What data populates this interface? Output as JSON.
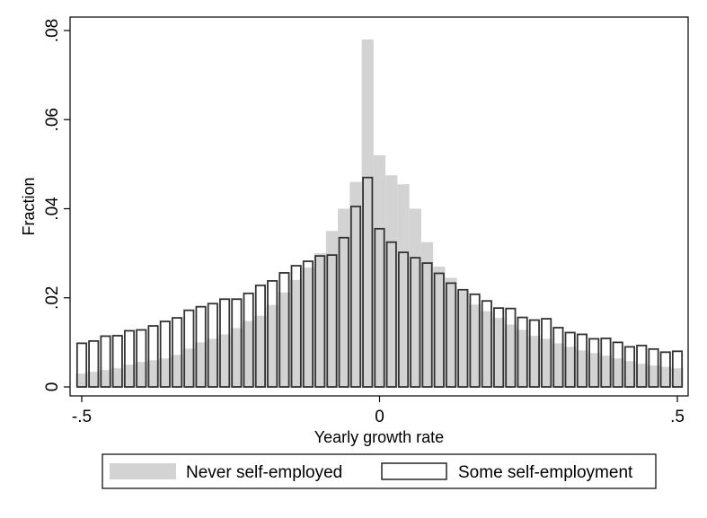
{
  "chart_data": {
    "type": "bar",
    "xlabel": "Yearly growth rate",
    "ylabel": "Fraction",
    "xlim": [
      -0.5,
      0.5
    ],
    "ylim": [
      0,
      0.08
    ],
    "x_ticks": [
      {
        "value": -0.5,
        "label": "-.5"
      },
      {
        "value": 0,
        "label": "0"
      },
      {
        "value": 0.5,
        "label": ".5"
      }
    ],
    "y_ticks": [
      {
        "value": 0,
        "label": "0"
      },
      {
        "value": 0.02,
        "label": ".02"
      },
      {
        "value": 0.04,
        "label": ".04"
      },
      {
        "value": 0.06,
        "label": ".06"
      },
      {
        "value": 0.08,
        "label": ".08"
      }
    ],
    "grid": false,
    "legend_position": "bottom",
    "bin_width": 0.02,
    "series": [
      {
        "name": "Never self-employed",
        "style": "filled",
        "color": "#d3d3d3",
        "x": [
          -0.5,
          -0.48,
          -0.46,
          -0.44,
          -0.42,
          -0.4,
          -0.38,
          -0.36,
          -0.34,
          -0.32,
          -0.3,
          -0.28,
          -0.26,
          -0.24,
          -0.22,
          -0.2,
          -0.18,
          -0.16,
          -0.14,
          -0.12,
          -0.1,
          -0.08,
          -0.06,
          -0.04,
          -0.02,
          0,
          0.02,
          0.04,
          0.06,
          0.08,
          0.1,
          0.12,
          0.14,
          0.16,
          0.18,
          0.2,
          0.22,
          0.24,
          0.26,
          0.28,
          0.3,
          0.32,
          0.34,
          0.36,
          0.38,
          0.4,
          0.42,
          0.44,
          0.46,
          0.48,
          0.5
        ],
        "values": [
          0.003,
          0.0034,
          0.0038,
          0.0042,
          0.005,
          0.0056,
          0.006,
          0.0064,
          0.0072,
          0.0086,
          0.01,
          0.0108,
          0.0118,
          0.0132,
          0.0148,
          0.016,
          0.0184,
          0.0212,
          0.024,
          0.0268,
          0.03,
          0.035,
          0.04,
          0.046,
          0.078,
          0.052,
          0.0475,
          0.0455,
          0.04,
          0.0325,
          0.027,
          0.0245,
          0.0215,
          0.0185,
          0.017,
          0.0155,
          0.014,
          0.0128,
          0.0115,
          0.0108,
          0.0098,
          0.009,
          0.0082,
          0.0076,
          0.007,
          0.0064,
          0.0058,
          0.0052,
          0.0048,
          0.0045,
          0.0042
        ]
      },
      {
        "name": "Some self-employment",
        "style": "outline",
        "color": "#333333",
        "x": [
          -0.5,
          -0.48,
          -0.46,
          -0.44,
          -0.42,
          -0.4,
          -0.38,
          -0.36,
          -0.34,
          -0.32,
          -0.3,
          -0.28,
          -0.26,
          -0.24,
          -0.22,
          -0.2,
          -0.18,
          -0.16,
          -0.14,
          -0.12,
          -0.1,
          -0.08,
          -0.06,
          -0.04,
          -0.02,
          0,
          0.02,
          0.04,
          0.06,
          0.08,
          0.1,
          0.12,
          0.14,
          0.16,
          0.18,
          0.2,
          0.22,
          0.24,
          0.26,
          0.28,
          0.3,
          0.32,
          0.34,
          0.36,
          0.38,
          0.4,
          0.42,
          0.44,
          0.46,
          0.48,
          0.5
        ],
        "values": [
          0.0098,
          0.0103,
          0.0114,
          0.0115,
          0.0126,
          0.0128,
          0.0137,
          0.0147,
          0.0155,
          0.0172,
          0.018,
          0.0187,
          0.0197,
          0.0197,
          0.021,
          0.0228,
          0.0238,
          0.0256,
          0.0272,
          0.0282,
          0.0294,
          0.0296,
          0.0335,
          0.0405,
          0.047,
          0.0355,
          0.0325,
          0.0302,
          0.029,
          0.0278,
          0.0255,
          0.0233,
          0.0218,
          0.0208,
          0.0193,
          0.0177,
          0.0176,
          0.0156,
          0.015,
          0.0153,
          0.0133,
          0.0122,
          0.0118,
          0.0108,
          0.0109,
          0.01,
          0.009,
          0.0093,
          0.0085,
          0.0078,
          0.008
        ]
      }
    ]
  }
}
